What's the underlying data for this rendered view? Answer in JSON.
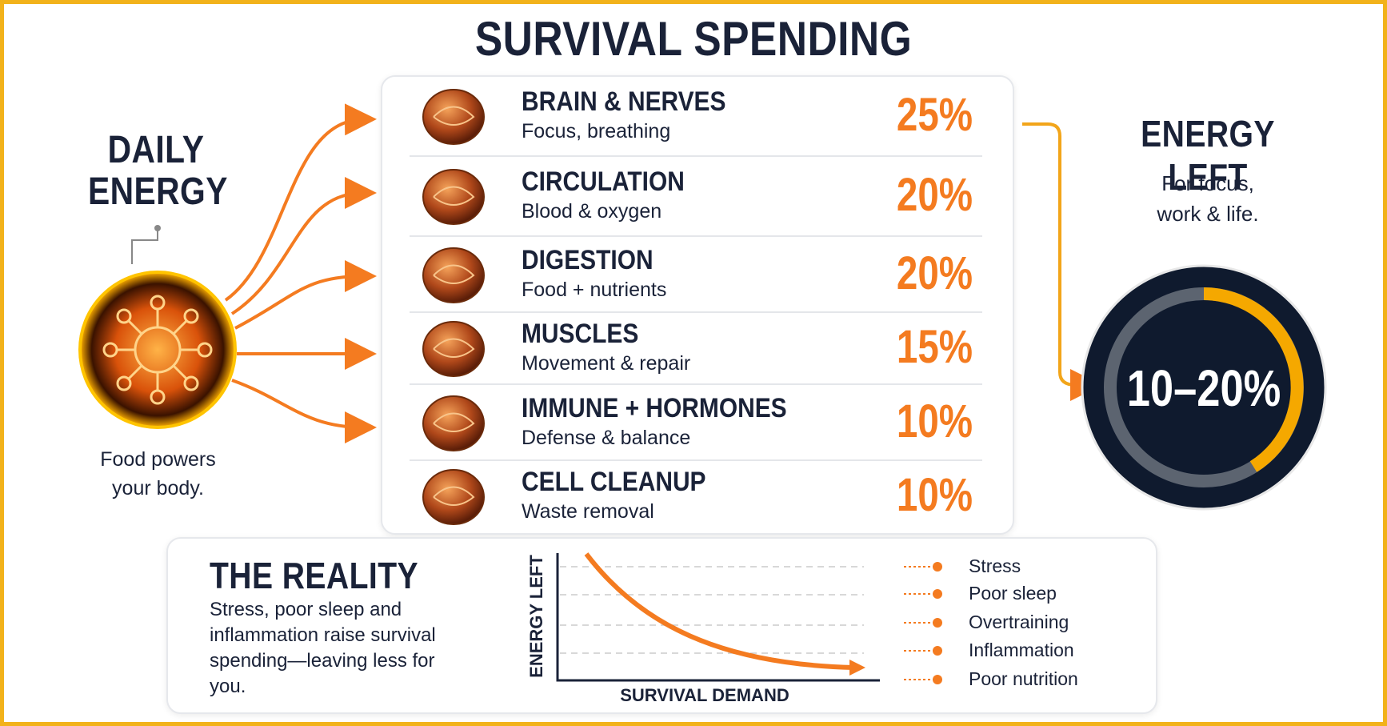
{
  "title": "SURVIVAL SPENDING",
  "input": {
    "title_lines": [
      "DAILY",
      "ENERGY"
    ],
    "caption": "Food powers your body."
  },
  "items": [
    {
      "name": "BRAIN & NERVES",
      "description": "Focus, breathing",
      "share": "25%"
    },
    {
      "name": "CIRCULATION",
      "description": "Blood & oxygen",
      "share": "20%"
    },
    {
      "name": "DIGESTION",
      "description": "Food + nutrients",
      "share": "20%"
    },
    {
      "name": "MUSCLES",
      "description": "Movement & repair",
      "share": "15%"
    },
    {
      "name": "IMMUNE + HORMONES",
      "description": "Defense & balance",
      "share": "10%"
    },
    {
      "name": "CELL CLEANUP",
      "description": "Waste removal",
      "share": "10%"
    }
  ],
  "output": {
    "title": "ENERGY LEFT",
    "caption": "For focus, work & life.",
    "value": "10–20%"
  },
  "reality": {
    "title": "THE REALITY",
    "text": "Stress, poor sleep and inflammation raise survival spending—leaving less for you.",
    "chart": {
      "y_label": "ENERGY LEFT",
      "x_label": "SURVIVAL DEMAND"
    },
    "factors": [
      "Stress",
      "Poor sleep",
      "Overtraining",
      "Inflammation",
      "Poor nutrition"
    ]
  }
}
